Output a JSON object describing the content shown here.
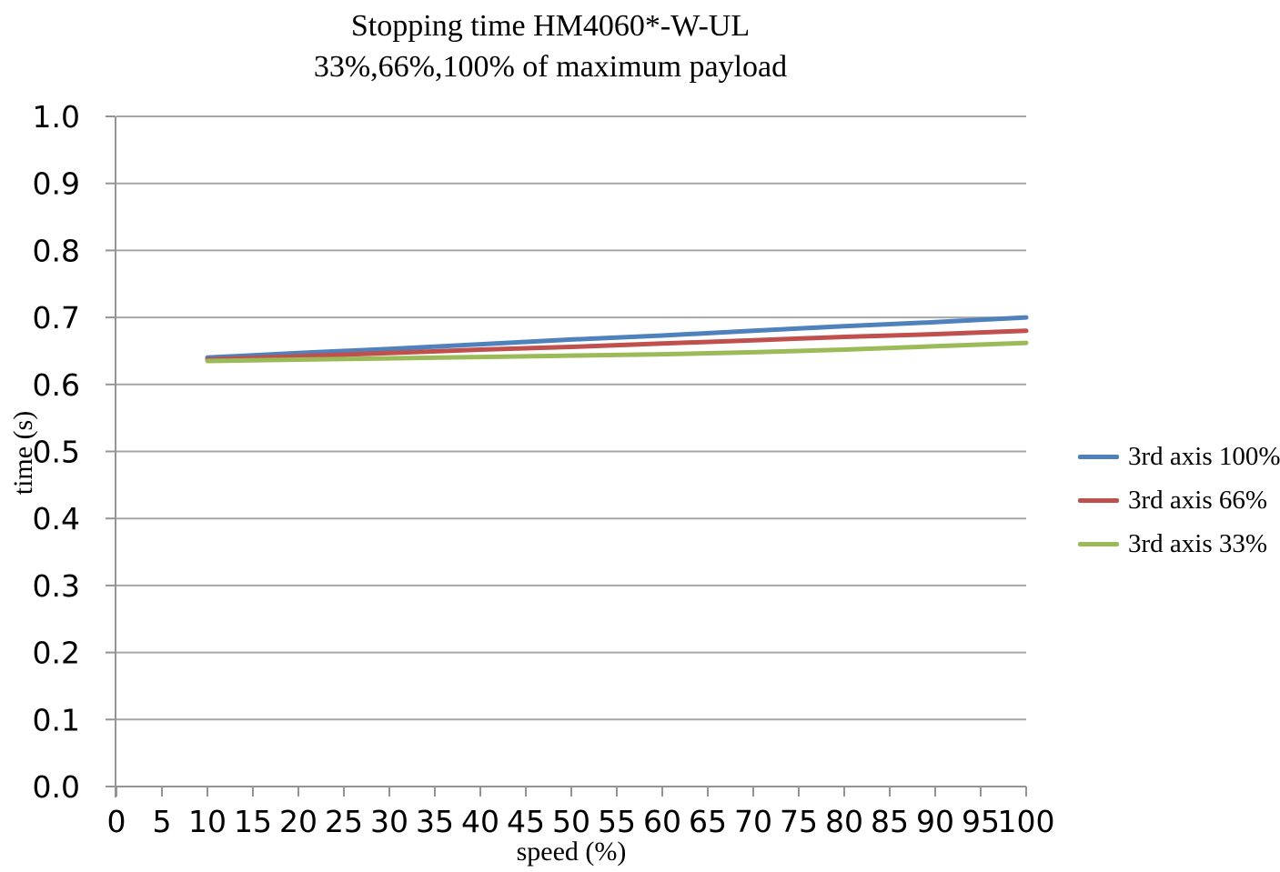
{
  "chart_data": {
    "type": "line",
    "title": "Stopping time HM4060*-W-UL",
    "subtitle": "33%,66%,100% of maximum payload",
    "xlabel": "speed (%)",
    "ylabel": "time (s)",
    "xlim": [
      0,
      100
    ],
    "ylim": [
      0.0,
      1.0
    ],
    "x_ticks": [
      0,
      5,
      10,
      15,
      20,
      25,
      30,
      35,
      40,
      45,
      50,
      55,
      60,
      65,
      70,
      75,
      80,
      85,
      90,
      95,
      100
    ],
    "y_ticks": [
      "0.0",
      "0.1",
      "0.2",
      "0.3",
      "0.4",
      "0.5",
      "0.6",
      "0.7",
      "0.8",
      "0.9",
      "1.0"
    ],
    "grid": "horizontal-only",
    "legend_position": "right",
    "x": [
      10,
      20,
      30,
      40,
      50,
      60,
      70,
      80,
      90,
      100
    ],
    "series": [
      {
        "name": "3rd axis 100%",
        "color": "#4F81BD",
        "values": [
          0.64,
          0.647,
          0.653,
          0.66,
          0.667,
          0.673,
          0.68,
          0.687,
          0.693,
          0.7
        ]
      },
      {
        "name": "3rd axis 66%",
        "color": "#C0504D",
        "values": [
          0.637,
          0.642,
          0.647,
          0.652,
          0.656,
          0.661,
          0.666,
          0.671,
          0.675,
          0.68
        ]
      },
      {
        "name": "3rd axis 33%",
        "color": "#9BBB59",
        "values": [
          0.635,
          0.637,
          0.639,
          0.641,
          0.643,
          0.645,
          0.648,
          0.652,
          0.657,
          0.662
        ]
      }
    ],
    "colors": {
      "gridline": "#a6a6a6",
      "axis": "#949494",
      "text": "#000000",
      "background": "#ffffff"
    }
  }
}
